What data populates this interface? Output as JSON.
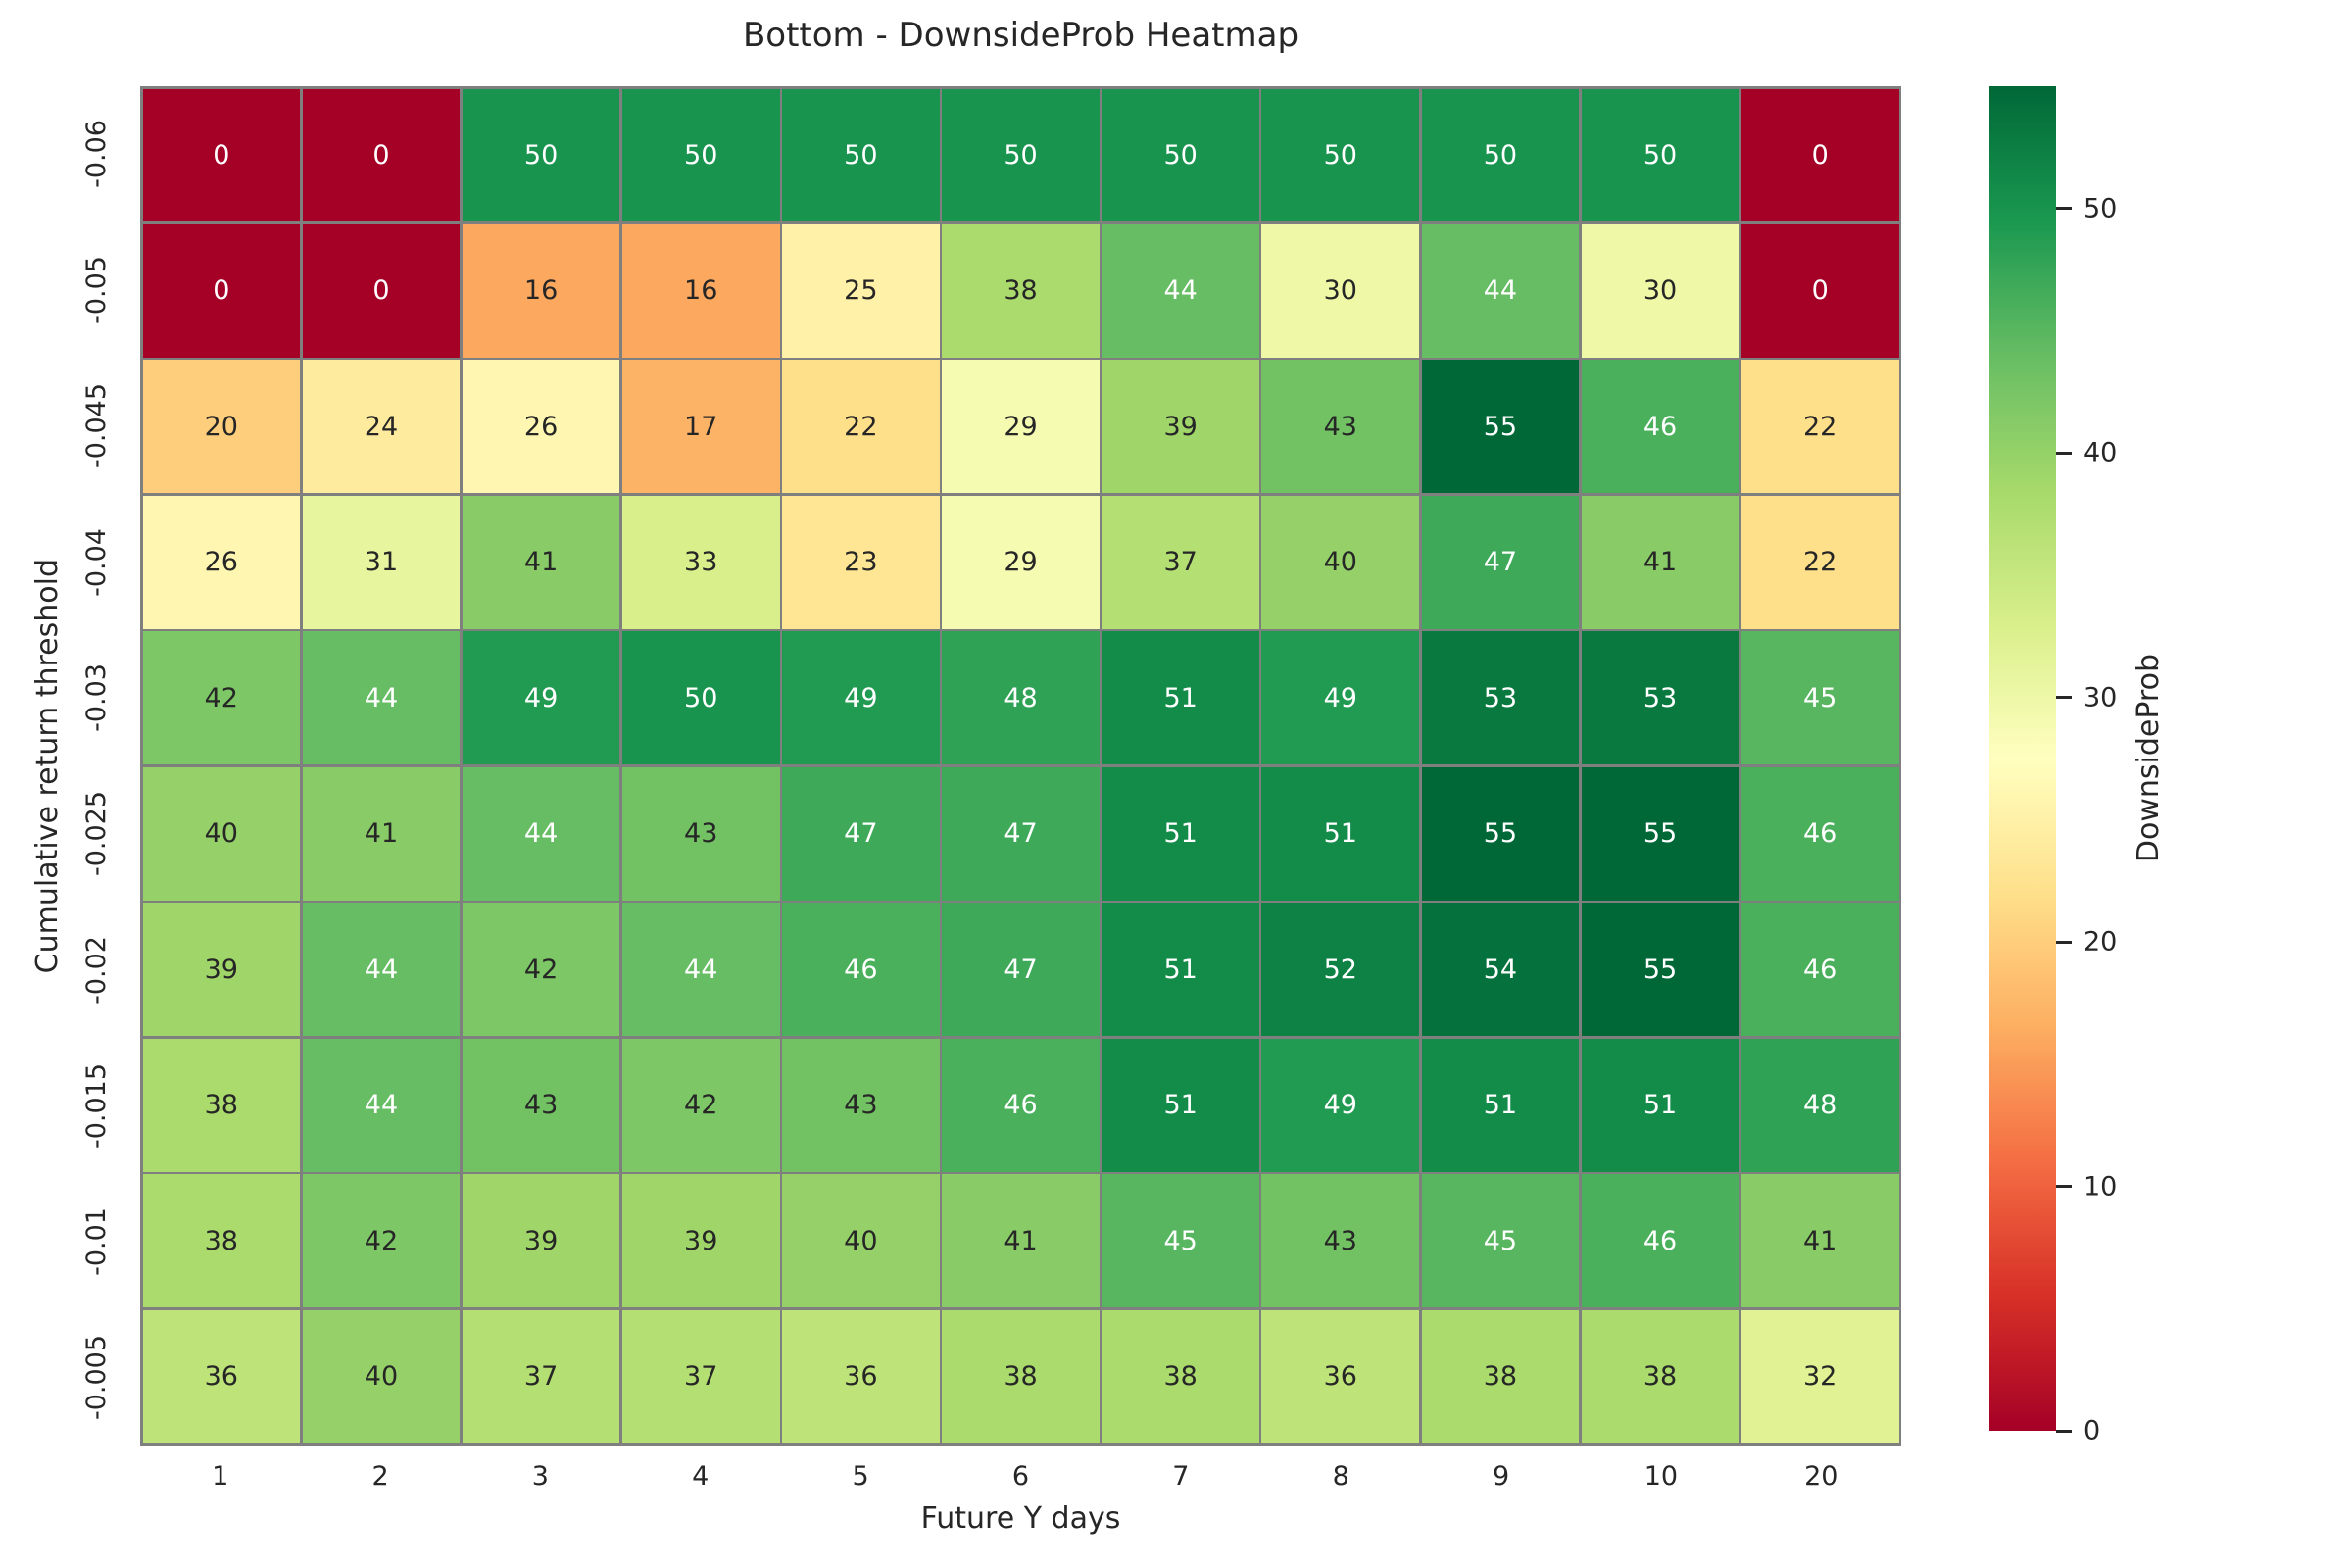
{
  "chart_data": {
    "type": "heatmap",
    "title": "Bottom - DownsideProb Heatmap",
    "xlabel": "Future Y days",
    "ylabel": "Cumulative return threshold",
    "x_categories": [
      "1",
      "2",
      "3",
      "4",
      "5",
      "6",
      "7",
      "8",
      "9",
      "10",
      "20"
    ],
    "y_categories": [
      "-0.06",
      "-0.05",
      "-0.045",
      "-0.04",
      "-0.03",
      "-0.025",
      "-0.02",
      "-0.015",
      "-0.01",
      "-0.005"
    ],
    "values": [
      [
        0,
        0,
        50,
        50,
        50,
        50,
        50,
        50,
        50,
        50,
        0
      ],
      [
        0,
        0,
        16,
        16,
        25,
        38,
        44,
        30,
        44,
        30,
        0
      ],
      [
        20,
        24,
        26,
        17,
        22,
        29,
        39,
        43,
        55,
        46,
        22
      ],
      [
        26,
        31,
        41,
        33,
        23,
        29,
        37,
        40,
        47,
        41,
        22
      ],
      [
        42,
        44,
        49,
        50,
        49,
        48,
        51,
        49,
        53,
        53,
        45
      ],
      [
        40,
        41,
        44,
        43,
        47,
        47,
        51,
        51,
        55,
        55,
        46
      ],
      [
        39,
        44,
        42,
        44,
        46,
        47,
        51,
        52,
        54,
        55,
        46
      ],
      [
        38,
        44,
        43,
        42,
        43,
        46,
        51,
        49,
        51,
        51,
        48
      ],
      [
        38,
        42,
        39,
        39,
        40,
        41,
        45,
        43,
        45,
        46,
        41
      ],
      [
        36,
        40,
        37,
        37,
        36,
        38,
        38,
        36,
        38,
        38,
        32
      ]
    ],
    "colorbar": {
      "label": "DownsideProb",
      "ticks": [
        0,
        10,
        20,
        30,
        40,
        50
      ],
      "vmin": 0,
      "vmax": 55
    },
    "colormap": {
      "name": "RdYlGn",
      "anchors": [
        "#a50026",
        "#d73027",
        "#f46d43",
        "#fdae61",
        "#fee08b",
        "#ffffbf",
        "#d9ef8b",
        "#a6d96a",
        "#66bd63",
        "#1a9850",
        "#006837"
      ]
    },
    "style": {
      "grid_line_color": "#7f7f7f",
      "annot_text_dark": "#262626",
      "annot_text_light": "#ffffff",
      "luminance_threshold": 0.408
    }
  }
}
